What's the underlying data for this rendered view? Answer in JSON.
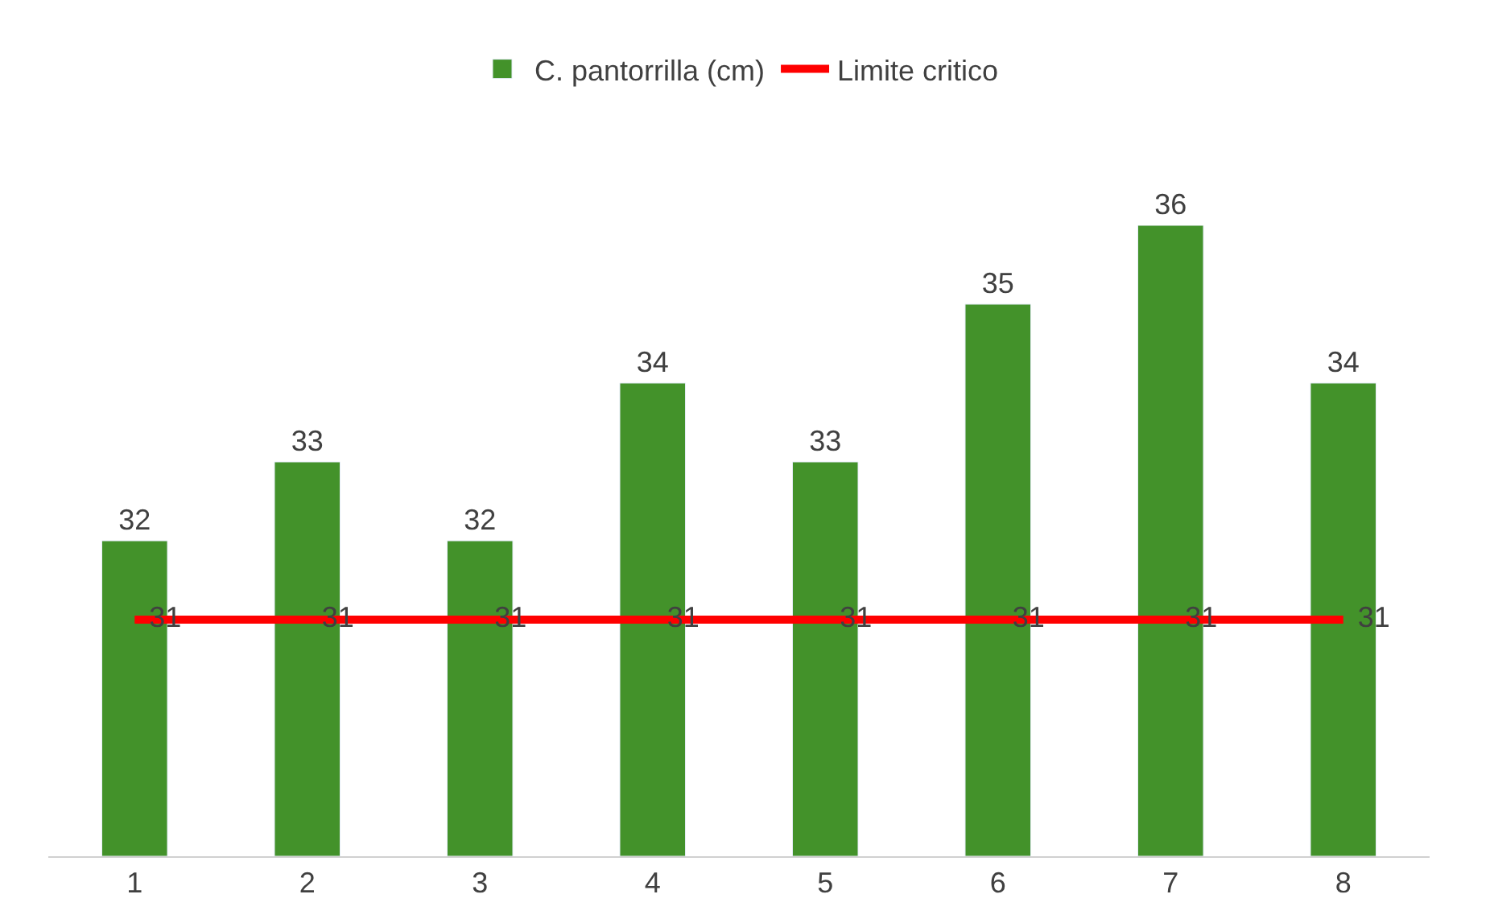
{
  "chart_data": {
    "type": "bar",
    "categories": [
      "1",
      "2",
      "3",
      "4",
      "5",
      "6",
      "7",
      "8"
    ],
    "series": [
      {
        "name": "C. pantorrilla (cm)",
        "color": "#43922a",
        "values": [
          32,
          33,
          32,
          34,
          33,
          35,
          36,
          34
        ]
      },
      {
        "name": "Limite critico",
        "type": "line",
        "color": "#ff0000",
        "values": [
          31,
          31,
          31,
          31,
          31,
          31,
          31,
          31
        ]
      }
    ],
    "ylim": [
      28,
      36
    ],
    "data_labels": true,
    "legend": "top",
    "marker": "none",
    "tick_labels": "x"
  }
}
